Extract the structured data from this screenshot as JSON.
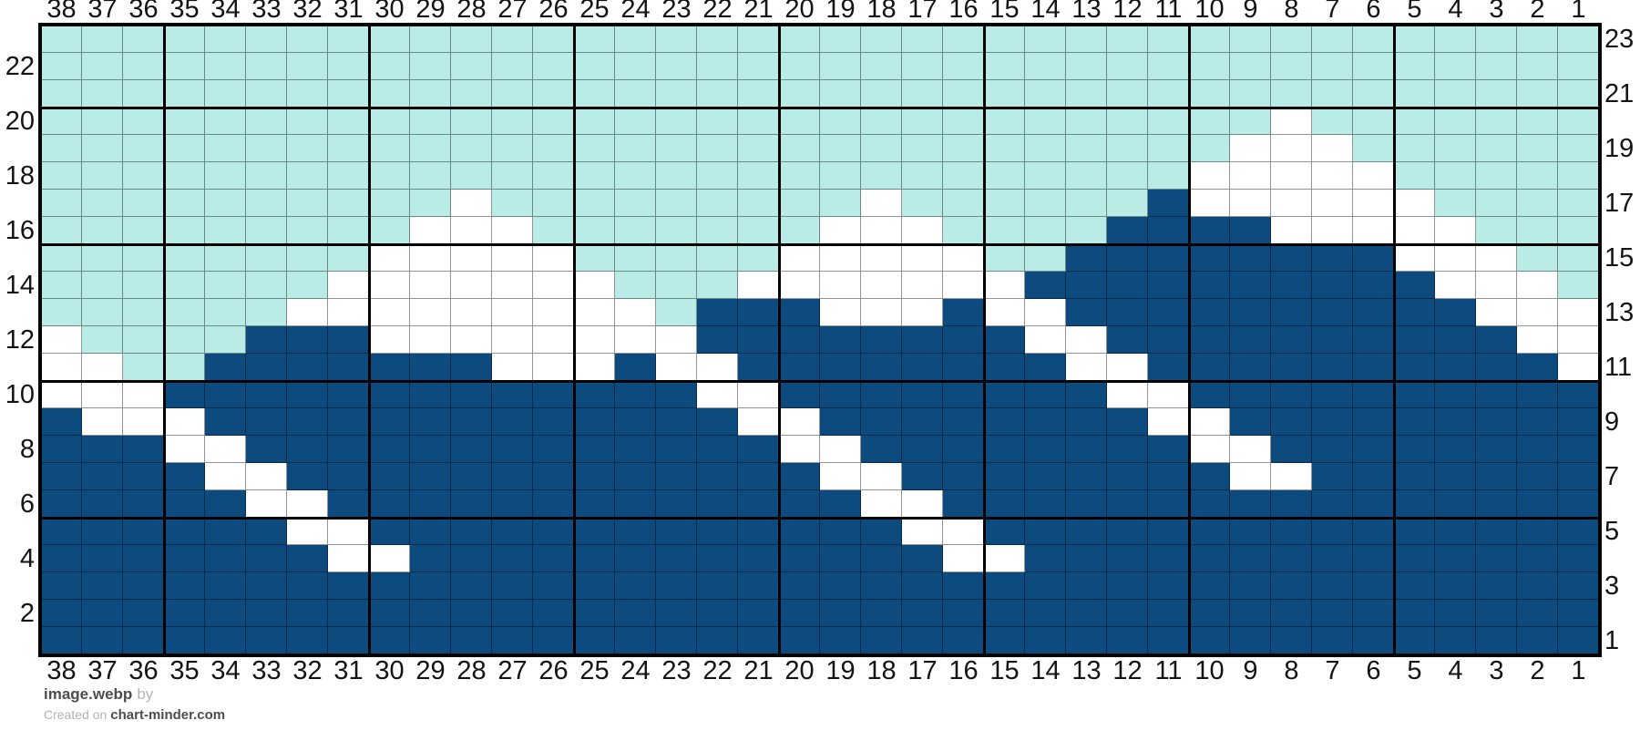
{
  "page": {
    "background": "#ffffff",
    "kind": "knitting colorwork chart export"
  },
  "footer": {
    "filename": "image.webp",
    "by_text": "by",
    "created_prefix": "Created on",
    "site": "chart-minder.com"
  },
  "chart_data": {
    "type": "heatmap",
    "title": "",
    "grid": {
      "columns": 38,
      "rows": 23
    },
    "column_numbering": "right-to-left",
    "row_numbering": "bottom-to-top",
    "major_grid_every": 5,
    "column_labels_top": [
      "38",
      "37",
      "36",
      "35",
      "34",
      "33",
      "32",
      "31",
      "30",
      "29",
      "28",
      "27",
      "26",
      "25",
      "24",
      "23",
      "22",
      "21",
      "20",
      "19",
      "18",
      "17",
      "16",
      "15",
      "14",
      "13",
      "12",
      "11",
      "10",
      "9",
      "8",
      "7",
      "6",
      "5",
      "4",
      "3",
      "2",
      "1"
    ],
    "column_labels_bottom": [
      "38",
      "37",
      "36",
      "35",
      "34",
      "33",
      "32",
      "31",
      "30",
      "29",
      "28",
      "27",
      "26",
      "25",
      "24",
      "23",
      "22",
      "21",
      "20",
      "19",
      "18",
      "17",
      "16",
      "15",
      "14",
      "13",
      "12",
      "11",
      "10",
      "9",
      "8",
      "7",
      "6",
      "5",
      "4",
      "3",
      "2",
      "1"
    ],
    "row_labels_left": [
      "22",
      "20",
      "18",
      "16",
      "14",
      "12",
      "10",
      "8",
      "6",
      "4",
      "2"
    ],
    "row_labels_right": [
      "23",
      "21",
      "19",
      "17",
      "15",
      "13",
      "11",
      "9",
      "7",
      "5",
      "3",
      "1"
    ],
    "colors": {
      "T": "#b9ece6",
      "W": "#ffffff",
      "N": "#0d4a7e"
    },
    "color_meanings": {
      "T": "light-teal sky",
      "W": "white snow/cloud",
      "N": "navy mountain"
    },
    "gridline_minor_color": "rgba(0,0,0,0.42)",
    "gridline_major_color": "#000000",
    "pattern_rows_top_to_bottom": [
      "TTTTTTTTTTTTTTTTTTTTTTTTTTTTTTTTTTTTTT",
      "TTTTTTTTTTTTTTTTTTTTTTTTTTTTTTTTTTTTTT",
      "TTTTTTTTTTTTTTTTTTTTTTTTTTTTTTTTTTTTTT",
      "TTTTTTTTTTTTTTTTTTTTTTTTTTTTTTWTTTTTTT",
      "TTTTTTTTTTTTTTTTTTTTTTTTTTTTTWWWTTTTTT",
      "TTTTTTTTTTTTTTTTTTTTTTTTTTTTWWWWWTTTTT",
      "TTTTTTTTTTWTTTTTTTTTWTTTTTTNWWWWWWTTTT",
      "TTTTTTTTTWWWTTTTTTTWWWTTTTNNNNWWWWWTTT",
      "TTTTTTTTWWWWWTTTTTWWWWWTTNNNNNNNNWWWTT",
      "TTTTTTTWWWWWWWTTTWWWWWWWNNNNNNNNNNWWWT",
      "TTTTTTWWWWWWWWWTNNNWWWNWWNNNNNNNNNNWWW",
      "WTTTTNNNWWWWWWWWNNNNNNNNWWNNNNNNNNNNWW",
      "WWTTNNNNNNNWWWNWWNNNNNNNNWWNNNNNNNNNNW",
      "WWWNNNNNNNNNNNNNWWNNNNNNNNWWNNNNNNNNNN",
      "NWWWNNNNNNNNNNNNNWWNNNNNNNNWWNNNNNNNNN",
      "NNNWWNNNNNNNNNNNNNWWNNNNNNNNWWNNNNNNNN",
      "NNNNWWNNNNNNNNNNNNNWWNNNNNNNNWWNNNNNNN",
      "NNNNNWWNNNNNNNNNNNNNWWNNNNNNNNNNNNNNNN",
      "NNNNNNWWNNNNNNNNNNNNNWWNNNNNNNNNNNNNNN",
      "NNNNNNNWWNNNNNNNNNNNNNWWNNNNNNNNNNNNNN",
      "NNNNNNNNNNNNNNNNNNNNNNNNNNNNNNNNNNNNNN",
      "NNNNNNNNNNNNNNNNNNNNNNNNNNNNNNNNNNNNNN",
      "NNNNNNNNNNNNNNNNNNNNNNNNNNNNNNNNNNNNNN"
    ]
  }
}
